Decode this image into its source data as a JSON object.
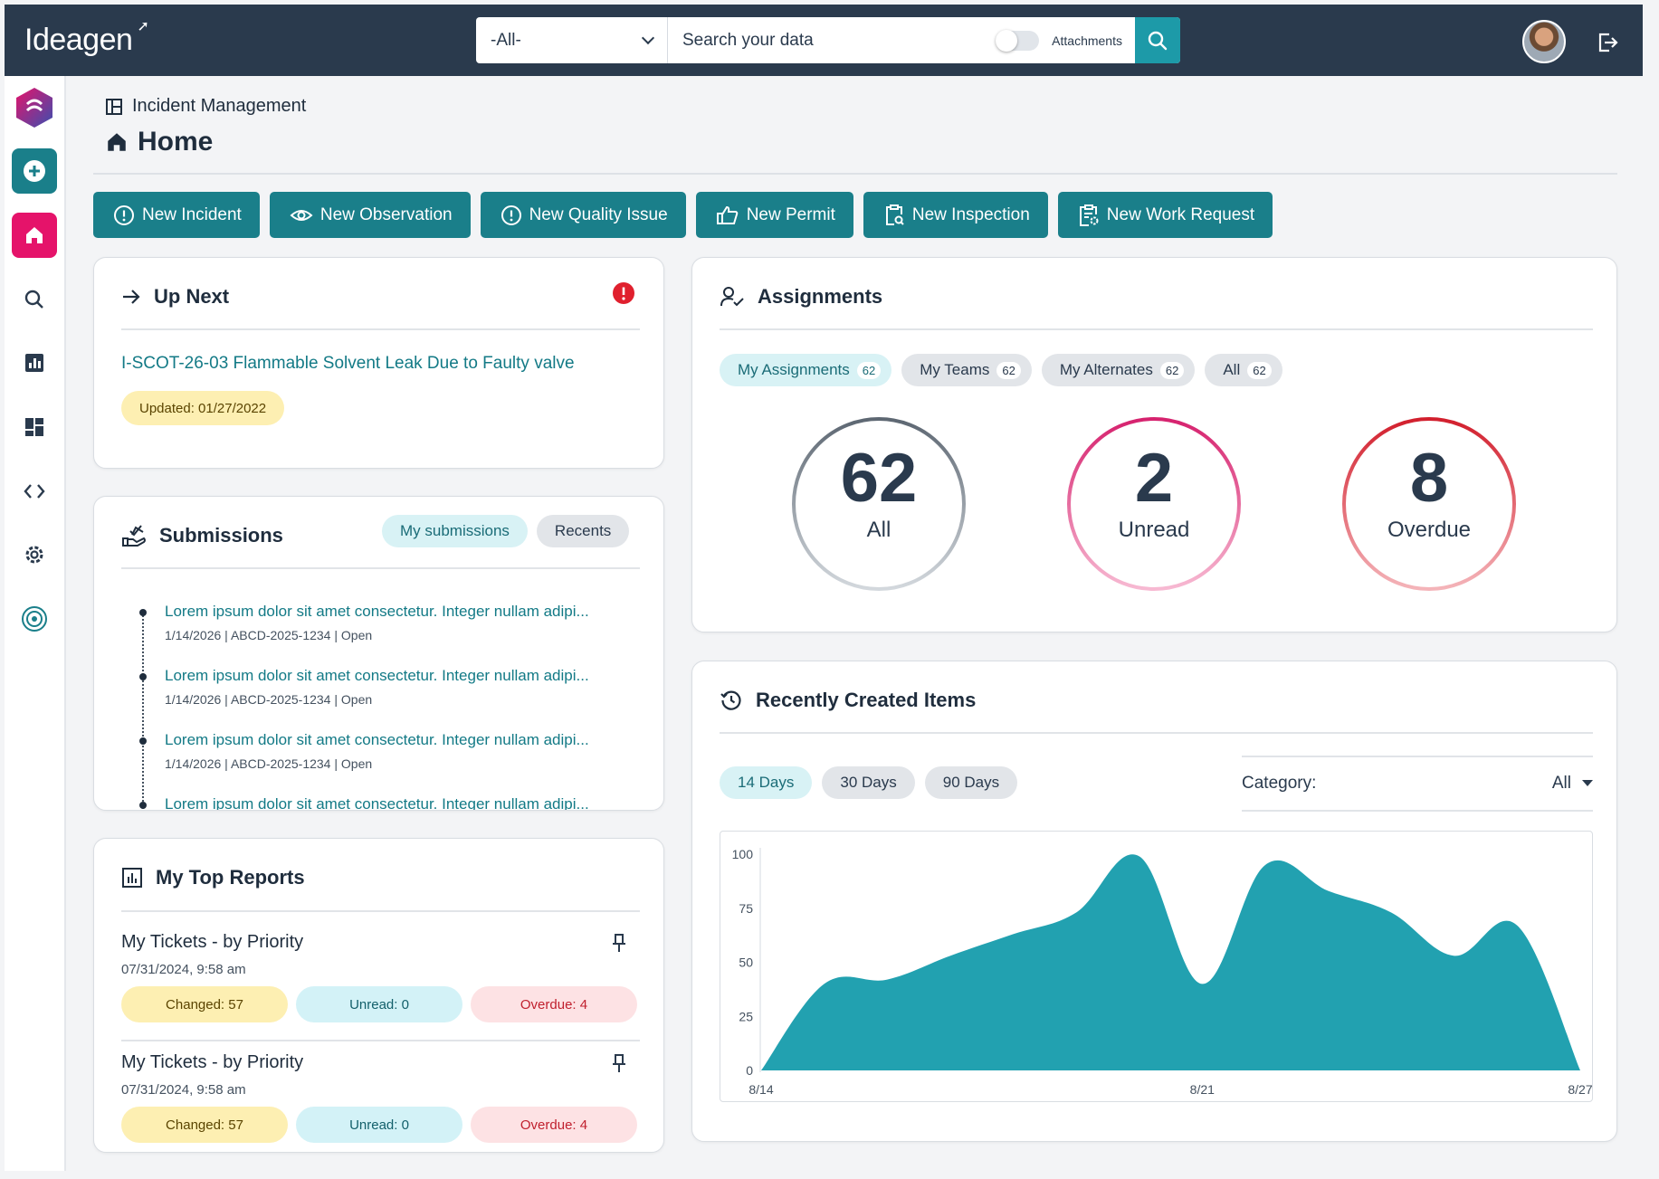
{
  "app": {
    "logo": "Ideagen"
  },
  "topbar": {
    "scope_value": "-All-",
    "search_placeholder": "Search your data",
    "attachments_label": "Attachments"
  },
  "breadcrumb": {
    "module": "Incident Management"
  },
  "page": {
    "title": "Home"
  },
  "actions": [
    {
      "label": "New Incident"
    },
    {
      "label": "New Observation"
    },
    {
      "label": "New Quality Issue"
    },
    {
      "label": "New Permit"
    },
    {
      "label": "New Inspection"
    },
    {
      "label": "New Work Request"
    }
  ],
  "up_next": {
    "title": "Up Next",
    "item_link": "I-SCOT-26-03 Flammable Solvent Leak Due to Faulty valve",
    "updated": "Updated: 01/27/2022"
  },
  "submissions": {
    "title": "Submissions",
    "tabs": [
      "My submissions",
      "Recents"
    ],
    "items": [
      {
        "title": "Lorem ipsum dolor sit amet consectetur. Integer nullam adipi...",
        "date": "1/14/2026",
        "id": "ABCD-2025-1234",
        "status": "Open"
      },
      {
        "title": "Lorem ipsum dolor sit amet consectetur. Integer nullam adipi...",
        "date": "1/14/2026",
        "id": "ABCD-2025-1234",
        "status": "Open"
      },
      {
        "title": "Lorem ipsum dolor sit amet consectetur. Integer nullam adipi...",
        "date": "1/14/2026",
        "id": "ABCD-2025-1234",
        "status": "Open"
      },
      {
        "title": "Lorem ipsum dolor sit amet consectetur. Integer nullam adipi..."
      }
    ]
  },
  "top_reports": {
    "title": "My Top Reports",
    "items": [
      {
        "name": "My Tickets - by Priority",
        "date": "07/31/2024, 9:58 am",
        "changed": "Changed: 57",
        "unread": "Unread: 0",
        "overdue": "Overdue: 4"
      },
      {
        "name": "My Tickets - by Priority",
        "date": "07/31/2024, 9:58 am",
        "changed": "Changed: 57",
        "unread": "Unread: 0",
        "overdue": "Overdue: 4"
      }
    ]
  },
  "assignments": {
    "title": "Assignments",
    "tabs": [
      {
        "label": "My Assignments",
        "count": "62"
      },
      {
        "label": "My Teams",
        "count": "62"
      },
      {
        "label": "My Alternates",
        "count": "62"
      },
      {
        "label": "All",
        "count": "62"
      }
    ],
    "rings": [
      {
        "value": "62",
        "label": "All",
        "color": "#8c959f"
      },
      {
        "value": "2",
        "label": "Unread",
        "color": "#d6226e"
      },
      {
        "value": "8",
        "label": "Overdue",
        "color": "#d21f2d"
      }
    ]
  },
  "recent": {
    "title": "Recently Created Items",
    "ranges": [
      "14 Days",
      "30 Days",
      "90 Days"
    ],
    "category_label": "Category:",
    "category_value": "All"
  },
  "chart_data": {
    "type": "area",
    "x": [
      "8/14",
      "8/15",
      "8/16",
      "8/17",
      "8/18",
      "8/19",
      "8/20",
      "8/21",
      "8/22",
      "8/23",
      "8/24",
      "8/25",
      "8/26",
      "8/27"
    ],
    "x_tick_labels": [
      "8/14",
      "8/21",
      "8/27"
    ],
    "values": [
      0,
      40,
      42,
      53,
      63,
      73,
      99,
      40,
      95,
      83,
      73,
      53,
      67,
      0
    ],
    "ylim": [
      0,
      100
    ],
    "y_ticks": [
      0,
      25,
      50,
      75,
      100
    ],
    "color": "#22a1b0",
    "grid": false
  },
  "colors": {
    "primary": "#1a7f8a",
    "topbar": "#2a3a4d",
    "accent_pink": "#e5136a"
  }
}
